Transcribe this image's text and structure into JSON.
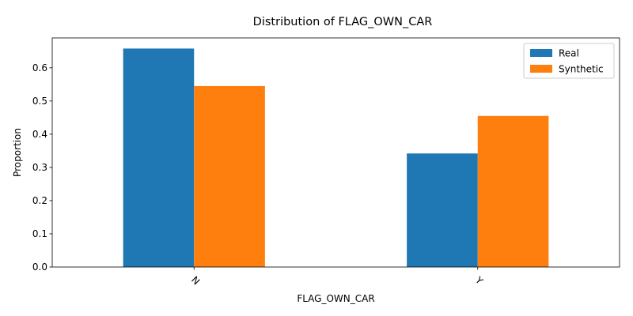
{
  "chart_data": {
    "type": "bar",
    "title": "Distribution of FLAG_OWN_CAR",
    "xlabel": "FLAG_OWN_CAR",
    "ylabel": "Proportion",
    "categories": [
      "N",
      "Y"
    ],
    "series": [
      {
        "name": "Real",
        "values": [
          0.658,
          0.342
        ],
        "color": "#1f77b4"
      },
      {
        "name": "Synthetic",
        "values": [
          0.545,
          0.455
        ],
        "color": "#ff7f0e"
      }
    ],
    "ylim": [
      0,
      0.69
    ],
    "yticks": [
      "0.0",
      "0.1",
      "0.2",
      "0.3",
      "0.4",
      "0.5",
      "0.6"
    ],
    "grid": false,
    "legend_position": "top-right",
    "x_tick_rotation": 45
  }
}
